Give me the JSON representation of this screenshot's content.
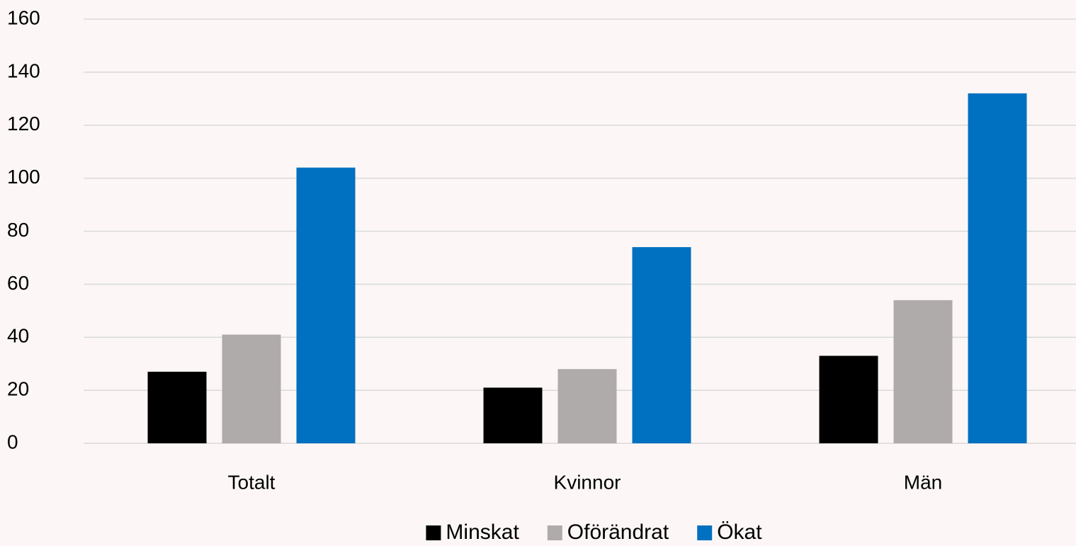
{
  "chart_data": {
    "type": "bar",
    "categories": [
      "Totalt",
      "Kvinnor",
      "Män"
    ],
    "series": [
      {
        "name": "Minskat",
        "color": "#000000",
        "values": [
          27,
          21,
          33
        ]
      },
      {
        "name": "Oförändrat",
        "color": "#afabaa",
        "values": [
          41,
          28,
          54
        ]
      },
      {
        "name": "Ökat",
        "color": "#0070c0",
        "values": [
          104,
          74,
          132
        ]
      }
    ],
    "ylim": [
      0,
      160
    ],
    "yticks": [
      0,
      20,
      40,
      60,
      80,
      100,
      120,
      140,
      160
    ],
    "grid": true,
    "legend": "bottom"
  }
}
